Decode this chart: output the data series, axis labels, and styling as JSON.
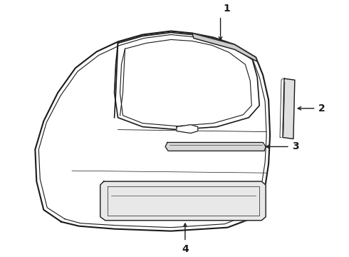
{
  "background_color": "#ffffff",
  "line_color": "#1a1a1a",
  "fig_width": 4.9,
  "fig_height": 3.6,
  "dpi": 100,
  "label_fontsize": 10,
  "label_fontweight": "bold"
}
